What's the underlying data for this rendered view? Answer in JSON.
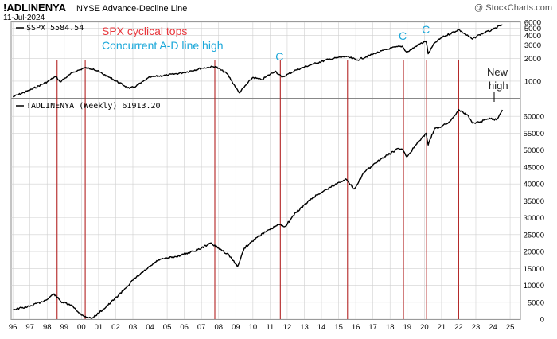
{
  "header": {
    "symbol": "!ADLINENYA",
    "name": "NYSE Advance-Decline Line",
    "date": "11-Jul-2024",
    "watermark": "@ StockCharts.com"
  },
  "annotations": {
    "cyclical_tops": "SPX cyclical tops",
    "concurrent_high": "Concurrent A-D line high",
    "c_marker": "C",
    "new_high_line1": "New",
    "new_high_line2": "high"
  },
  "colors": {
    "top_line": "#b32424",
    "cyclical_tops_text": "#e8373d",
    "concurrent_text": "#1aa7d9",
    "series": "#000000",
    "grid": "#d0d0d0"
  },
  "chart_data": [
    {
      "type": "line",
      "panel": "top",
      "legend": "$SPX 5584.54",
      "scale": "log",
      "ylim": [
        600,
        6000
      ],
      "yticks": [
        1000,
        2000,
        3000,
        4000,
        5000,
        6000
      ],
      "ytick_labels": [
        "1000",
        "2000",
        "3000",
        "4000",
        "5000",
        "6000"
      ],
      "x": [
        1996.0,
        1997.0,
        1998.0,
        1998.5,
        1998.75,
        1999.5,
        2000.2,
        2000.7,
        2001.7,
        2002.8,
        2003.2,
        2004.0,
        2005.0,
        2006.0,
        2007.0,
        2007.8,
        2008.5,
        2009.2,
        2010.0,
        2010.5,
        2011.3,
        2011.7,
        2012.5,
        2013.5,
        2014.5,
        2015.4,
        2016.1,
        2017.0,
        2018.0,
        2018.7,
        2018.98,
        2019.6,
        2020.1,
        2020.22,
        2020.6,
        2021.0,
        2022.0,
        2022.8,
        2023.2,
        2024.0,
        2024.55
      ],
      "values": [
        620,
        760,
        980,
        1150,
        980,
        1300,
        1500,
        1450,
        1100,
        800,
        860,
        1130,
        1200,
        1300,
        1480,
        1560,
        1250,
        700,
        1120,
        1040,
        1360,
        1120,
        1400,
        1680,
        1960,
        2120,
        1900,
        2270,
        2720,
        2900,
        2400,
        2990,
        3390,
        2300,
        3200,
        3750,
        4790,
        3600,
        4100,
        4800,
        5584.54
      ]
    },
    {
      "type": "line",
      "panel": "bottom",
      "legend": "!ADLINENYA (Weekly) 61913.20",
      "ylim": [
        0,
        65000
      ],
      "yticks": [
        0,
        5000,
        10000,
        15000,
        20000,
        25000,
        30000,
        35000,
        40000,
        45000,
        50000,
        55000,
        60000
      ],
      "ytick_labels": [
        "0",
        "5000",
        "10000",
        "15000",
        "20000",
        "25000",
        "30000",
        "35000",
        "40000",
        "45000",
        "50000",
        "55000",
        "60000"
      ],
      "x": [
        1996.0,
        1997.0,
        1998.0,
        1998.4,
        1998.8,
        1999.5,
        2000.0,
        2000.6,
        2001.0,
        2001.7,
        2002.5,
        2003.0,
        2003.8,
        2004.5,
        2005.5,
        2006.5,
        2007.0,
        2007.5,
        2008.0,
        2008.6,
        2009.1,
        2009.5,
        2010.3,
        2011.0,
        2011.5,
        2011.9,
        2012.5,
        2013.5,
        2014.5,
        2015.4,
        2015.9,
        2016.5,
        2017.5,
        2018.5,
        2018.75,
        2018.98,
        2019.5,
        2020.1,
        2020.22,
        2020.6,
        2021.0,
        2021.5,
        2022.0,
        2022.5,
        2022.8,
        2023.3,
        2023.8,
        2024.2,
        2024.55
      ],
      "values": [
        2800,
        3800,
        5800,
        7500,
        5200,
        3800,
        1200,
        200,
        1800,
        4800,
        8800,
        11500,
        14800,
        17500,
        18500,
        20000,
        21000,
        22500,
        21000,
        19000,
        15500,
        21000,
        24500,
        26500,
        28000,
        27500,
        31500,
        36000,
        39000,
        41500,
        38500,
        43500,
        47500,
        50500,
        50000,
        48000,
        51500,
        55000,
        51500,
        56500,
        57000,
        58500,
        62000,
        60500,
        58000,
        58500,
        59500,
        59000,
        61913.2
      ]
    },
    {
      "type": "vlines",
      "label": "SPX cyclical tops",
      "x": [
        1998.58,
        2000.22,
        2007.78,
        2011.6,
        2015.52,
        2018.78,
        2020.13,
        2022.0
      ]
    },
    {
      "type": "markers",
      "label": "Concurrent A-D line high",
      "x": [
        2011.6,
        2018.78,
        2020.13
      ]
    },
    {
      "type": "x-axis",
      "xlim": [
        1995.9,
        2025.6
      ],
      "ticks": [
        1996,
        1997,
        1998,
        1999,
        2000,
        2001,
        2002,
        2003,
        2004,
        2005,
        2006,
        2007,
        2008,
        2009,
        2010,
        2011,
        2012,
        2013,
        2014,
        2015,
        2016,
        2017,
        2018,
        2019,
        2020,
        2021,
        2022,
        2023,
        2024,
        2025
      ],
      "tick_labels": [
        "96",
        "97",
        "98",
        "99",
        "00",
        "01",
        "02",
        "03",
        "04",
        "05",
        "06",
        "07",
        "08",
        "09",
        "10",
        "11",
        "12",
        "13",
        "14",
        "15",
        "16",
        "17",
        "18",
        "19",
        "20",
        "21",
        "22",
        "23",
        "24",
        "25"
      ]
    }
  ]
}
